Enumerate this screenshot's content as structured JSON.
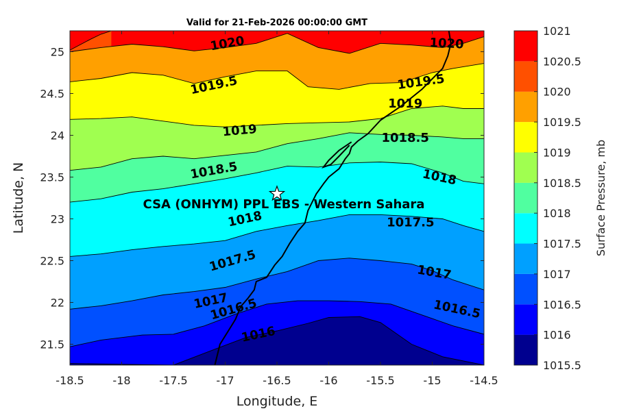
{
  "chart_data": {
    "type": "contour",
    "title": "Valid for 21-Feb-2026 00:00:00 GMT",
    "xlabel": "Longitude, E",
    "ylabel": "Latitude, N",
    "xlim": [
      -18.5,
      -14.5
    ],
    "ylim": [
      21.25,
      25.25
    ],
    "xticks": [
      "-18.5",
      "-18",
      "-17.5",
      "-17",
      "-16.5",
      "-16",
      "-15.5",
      "-15",
      "-14.5"
    ],
    "yticks": [
      "21.5",
      "22",
      "22.5",
      "23",
      "23.5",
      "24",
      "24.5",
      "25"
    ],
    "colorbar": {
      "label": "Surface Pressure, mb",
      "ticks": [
        "1015.5",
        "1016",
        "1016.5",
        "1017",
        "1017.5",
        "1018",
        "1018.5",
        "1019",
        "1019.5",
        "1020",
        "1020.5",
        "1021"
      ],
      "colors": [
        "#00008f",
        "#0000ff",
        "#0050ff",
        "#00a0ff",
        "#00ffff",
        "#50ffa0",
        "#a0ff50",
        "#ffff00",
        "#ffa000",
        "#ff5000",
        "#ff0000",
        "#a00000"
      ]
    },
    "contours": [
      {
        "level": 1016,
        "label": "1016",
        "x": [
          -18.5,
          -18,
          -17.5,
          -17.1,
          -16.8,
          -16.5,
          -16.2,
          -16,
          -15.7,
          -15.5,
          -15.2,
          -14.9,
          -14.5
        ],
        "y": [
          21.27,
          21.26,
          21.25,
          21.44,
          21.58,
          21.66,
          21.75,
          21.82,
          21.83,
          21.76,
          21.5,
          21.35,
          21.25
        ]
      },
      {
        "level": 1016.5,
        "label": "1016.5",
        "x": [
          -18.5,
          -18.2,
          -17.8,
          -17.5,
          -17.2,
          -16.9,
          -16.6,
          -16.3,
          -16,
          -15.7,
          -15.4,
          -15.1,
          -14.8,
          -14.5
        ],
        "y": [
          21.47,
          21.55,
          21.61,
          21.62,
          21.72,
          21.86,
          21.98,
          22.02,
          22.02,
          22.01,
          21.98,
          21.85,
          21.72,
          21.62
        ]
      },
      {
        "level": 1017,
        "label": "1017",
        "x": [
          -18.5,
          -18.2,
          -17.9,
          -17.6,
          -17.3,
          -17,
          -16.7,
          -16.4,
          -16.1,
          -15.8,
          -15.5,
          -15.2,
          -15,
          -14.8,
          -14.5
        ],
        "y": [
          21.92,
          21.96,
          22.02,
          22.09,
          22.13,
          22.18,
          22.28,
          22.37,
          22.5,
          22.53,
          22.5,
          22.46,
          22.38,
          22.27,
          22.15
        ]
      },
      {
        "level": 1017.5,
        "label": "1017.5",
        "x": [
          -18.5,
          -18.2,
          -17.9,
          -17.6,
          -17.3,
          -17,
          -16.7,
          -16.4,
          -16.1,
          -15.8,
          -15.5,
          -15.2,
          -14.9,
          -14.7,
          -14.5
        ],
        "y": [
          22.55,
          22.58,
          22.63,
          22.67,
          22.7,
          22.74,
          22.85,
          22.92,
          22.98,
          23.05,
          23.05,
          23.03,
          23.0,
          22.92,
          22.85
        ]
      },
      {
        "level": 1018,
        "label": "1018",
        "x": [
          -18.5,
          -18.2,
          -17.9,
          -17.6,
          -17.3,
          -17,
          -16.7,
          -16.4,
          -16.1,
          -15.8,
          -15.5,
          -15.2,
          -14.9,
          -14.7,
          -14.5
        ],
        "y": [
          23.2,
          23.24,
          23.32,
          23.36,
          23.42,
          23.48,
          23.55,
          23.63,
          23.62,
          23.67,
          23.68,
          23.66,
          23.55,
          23.45,
          23.42
        ]
      },
      {
        "level": 1018.5,
        "label": "1018.5",
        "x": [
          -18.5,
          -18.2,
          -17.9,
          -17.6,
          -17.3,
          -17,
          -16.7,
          -16.4,
          -16.1,
          -15.8,
          -15.5,
          -15.2,
          -14.9,
          -14.7,
          -14.5
        ],
        "y": [
          23.58,
          23.62,
          23.72,
          23.75,
          23.72,
          23.76,
          23.8,
          23.9,
          23.96,
          24.03,
          24.01,
          24.0,
          23.98,
          23.96,
          23.96
        ]
      },
      {
        "level": 1019,
        "label": "1019",
        "x": [
          -18.5,
          -18.2,
          -17.9,
          -17.6,
          -17.3,
          -17,
          -16.7,
          -16.4,
          -16.1,
          -15.8,
          -15.5,
          -15.2,
          -14.9,
          -14.7,
          -14.5
        ],
        "y": [
          24.19,
          24.2,
          24.22,
          24.17,
          24.12,
          24.1,
          24.12,
          24.14,
          24.15,
          24.16,
          24.2,
          24.32,
          24.35,
          24.32,
          24.32
        ]
      },
      {
        "level": 1019.5,
        "label": "1019.5",
        "x": [
          -18.5,
          -18.2,
          -17.9,
          -17.6,
          -17.3,
          -17,
          -16.7,
          -16.4,
          -16.2,
          -15.9,
          -15.6,
          -15.3,
          -15,
          -14.8,
          -14.5
        ],
        "y": [
          24.64,
          24.68,
          24.75,
          24.72,
          24.62,
          24.7,
          24.77,
          24.77,
          24.58,
          24.55,
          24.62,
          24.63,
          24.75,
          24.8,
          24.86
        ]
      },
      {
        "level": 1020,
        "label": "1020",
        "x": [
          -18.5,
          -18.2,
          -17.9,
          -17.6,
          -17.3,
          -17,
          -16.7,
          -16.4,
          -16.1,
          -15.8,
          -15.5,
          -15.2,
          -14.9,
          -14.7,
          -14.5
        ],
        "y": [
          25.0,
          25.05,
          25.09,
          25.06,
          25.01,
          25.05,
          25.1,
          25.22,
          25.05,
          24.98,
          25.1,
          25.08,
          25.05,
          25.1,
          25.18
        ]
      },
      {
        "level": 1020.5,
        "label": "",
        "x": [
          -18.5,
          -18.3,
          -18.2,
          -18.1
        ],
        "y": [
          25.02,
          25.15,
          25.21,
          25.25
        ]
      }
    ],
    "contour_labels": [
      {
        "text": "1020",
        "x": -16.98,
        "y": 25.1,
        "rotate": -10
      },
      {
        "text": "1020",
        "x": -14.86,
        "y": 25.1,
        "rotate": 3
      },
      {
        "text": "1019.5",
        "x": -17.11,
        "y": 24.6,
        "rotate": -12
      },
      {
        "text": "1019.5",
        "x": -15.11,
        "y": 24.64,
        "rotate": -8
      },
      {
        "text": "1019",
        "x": -15.26,
        "y": 24.38,
        "rotate": 0
      },
      {
        "text": "1019",
        "x": -16.86,
        "y": 24.06,
        "rotate": -5
      },
      {
        "text": "1018.5",
        "x": -15.26,
        "y": 23.97,
        "rotate": 0
      },
      {
        "text": "1018.5",
        "x": -17.11,
        "y": 23.58,
        "rotate": -10
      },
      {
        "text": "1018",
        "x": -14.93,
        "y": 23.5,
        "rotate": 12
      },
      {
        "text": "1018",
        "x": -16.81,
        "y": 23.0,
        "rotate": -12
      },
      {
        "text": "1017.5",
        "x": -15.21,
        "y": 22.96,
        "rotate": 0
      },
      {
        "text": "1017.5",
        "x": -16.93,
        "y": 22.5,
        "rotate": -16
      },
      {
        "text": "1017",
        "x": -14.98,
        "y": 22.36,
        "rotate": 10
      },
      {
        "text": "1017",
        "x": -17.14,
        "y": 22.02,
        "rotate": -12
      },
      {
        "text": "1016.5",
        "x": -14.76,
        "y": 21.92,
        "rotate": 12
      },
      {
        "text": "1016.5",
        "x": -16.92,
        "y": 21.92,
        "rotate": -16
      },
      {
        "text": "1016",
        "x": -16.68,
        "y": 21.62,
        "rotate": -12
      }
    ],
    "coastline": {
      "x": [
        -14.84,
        -14.82,
        -14.85,
        -14.9,
        -15.1,
        -15.3,
        -15.5,
        -15.62,
        -15.72,
        -15.78,
        -15.8,
        -15.84,
        -15.9,
        -15.95,
        -16.0,
        -16.05,
        -16.12,
        -16.2,
        -16.23,
        -16.3,
        -16.38,
        -16.45,
        -16.52,
        -16.6,
        -16.7,
        -16.72,
        -16.78,
        -16.85,
        -16.9,
        -16.95,
        -17.0,
        -17.05,
        -17.08,
        -17.1
      ],
      "y": [
        25.25,
        25.1,
        24.95,
        24.8,
        24.55,
        24.35,
        24.18,
        24.02,
        23.93,
        23.86,
        23.78,
        23.72,
        23.6,
        23.55,
        23.5,
        23.42,
        23.3,
        23.1,
        22.95,
        22.85,
        22.7,
        22.55,
        22.45,
        22.3,
        22.25,
        22.15,
        22.05,
        21.95,
        21.8,
        21.7,
        21.6,
        21.5,
        21.35,
        21.25
      ]
    },
    "dakhla_peninsula": {
      "x": [
        -15.78,
        -15.9,
        -16.0,
        -16.05,
        -15.98,
        -15.9,
        -15.8
      ],
      "y": [
        23.92,
        23.82,
        23.7,
        23.62,
        23.65,
        23.75,
        23.88
      ]
    },
    "site": {
      "label": "CSA (ONHYM) PPL EBS - Western Sahara",
      "lon": -16.5,
      "lat": 23.3
    }
  }
}
